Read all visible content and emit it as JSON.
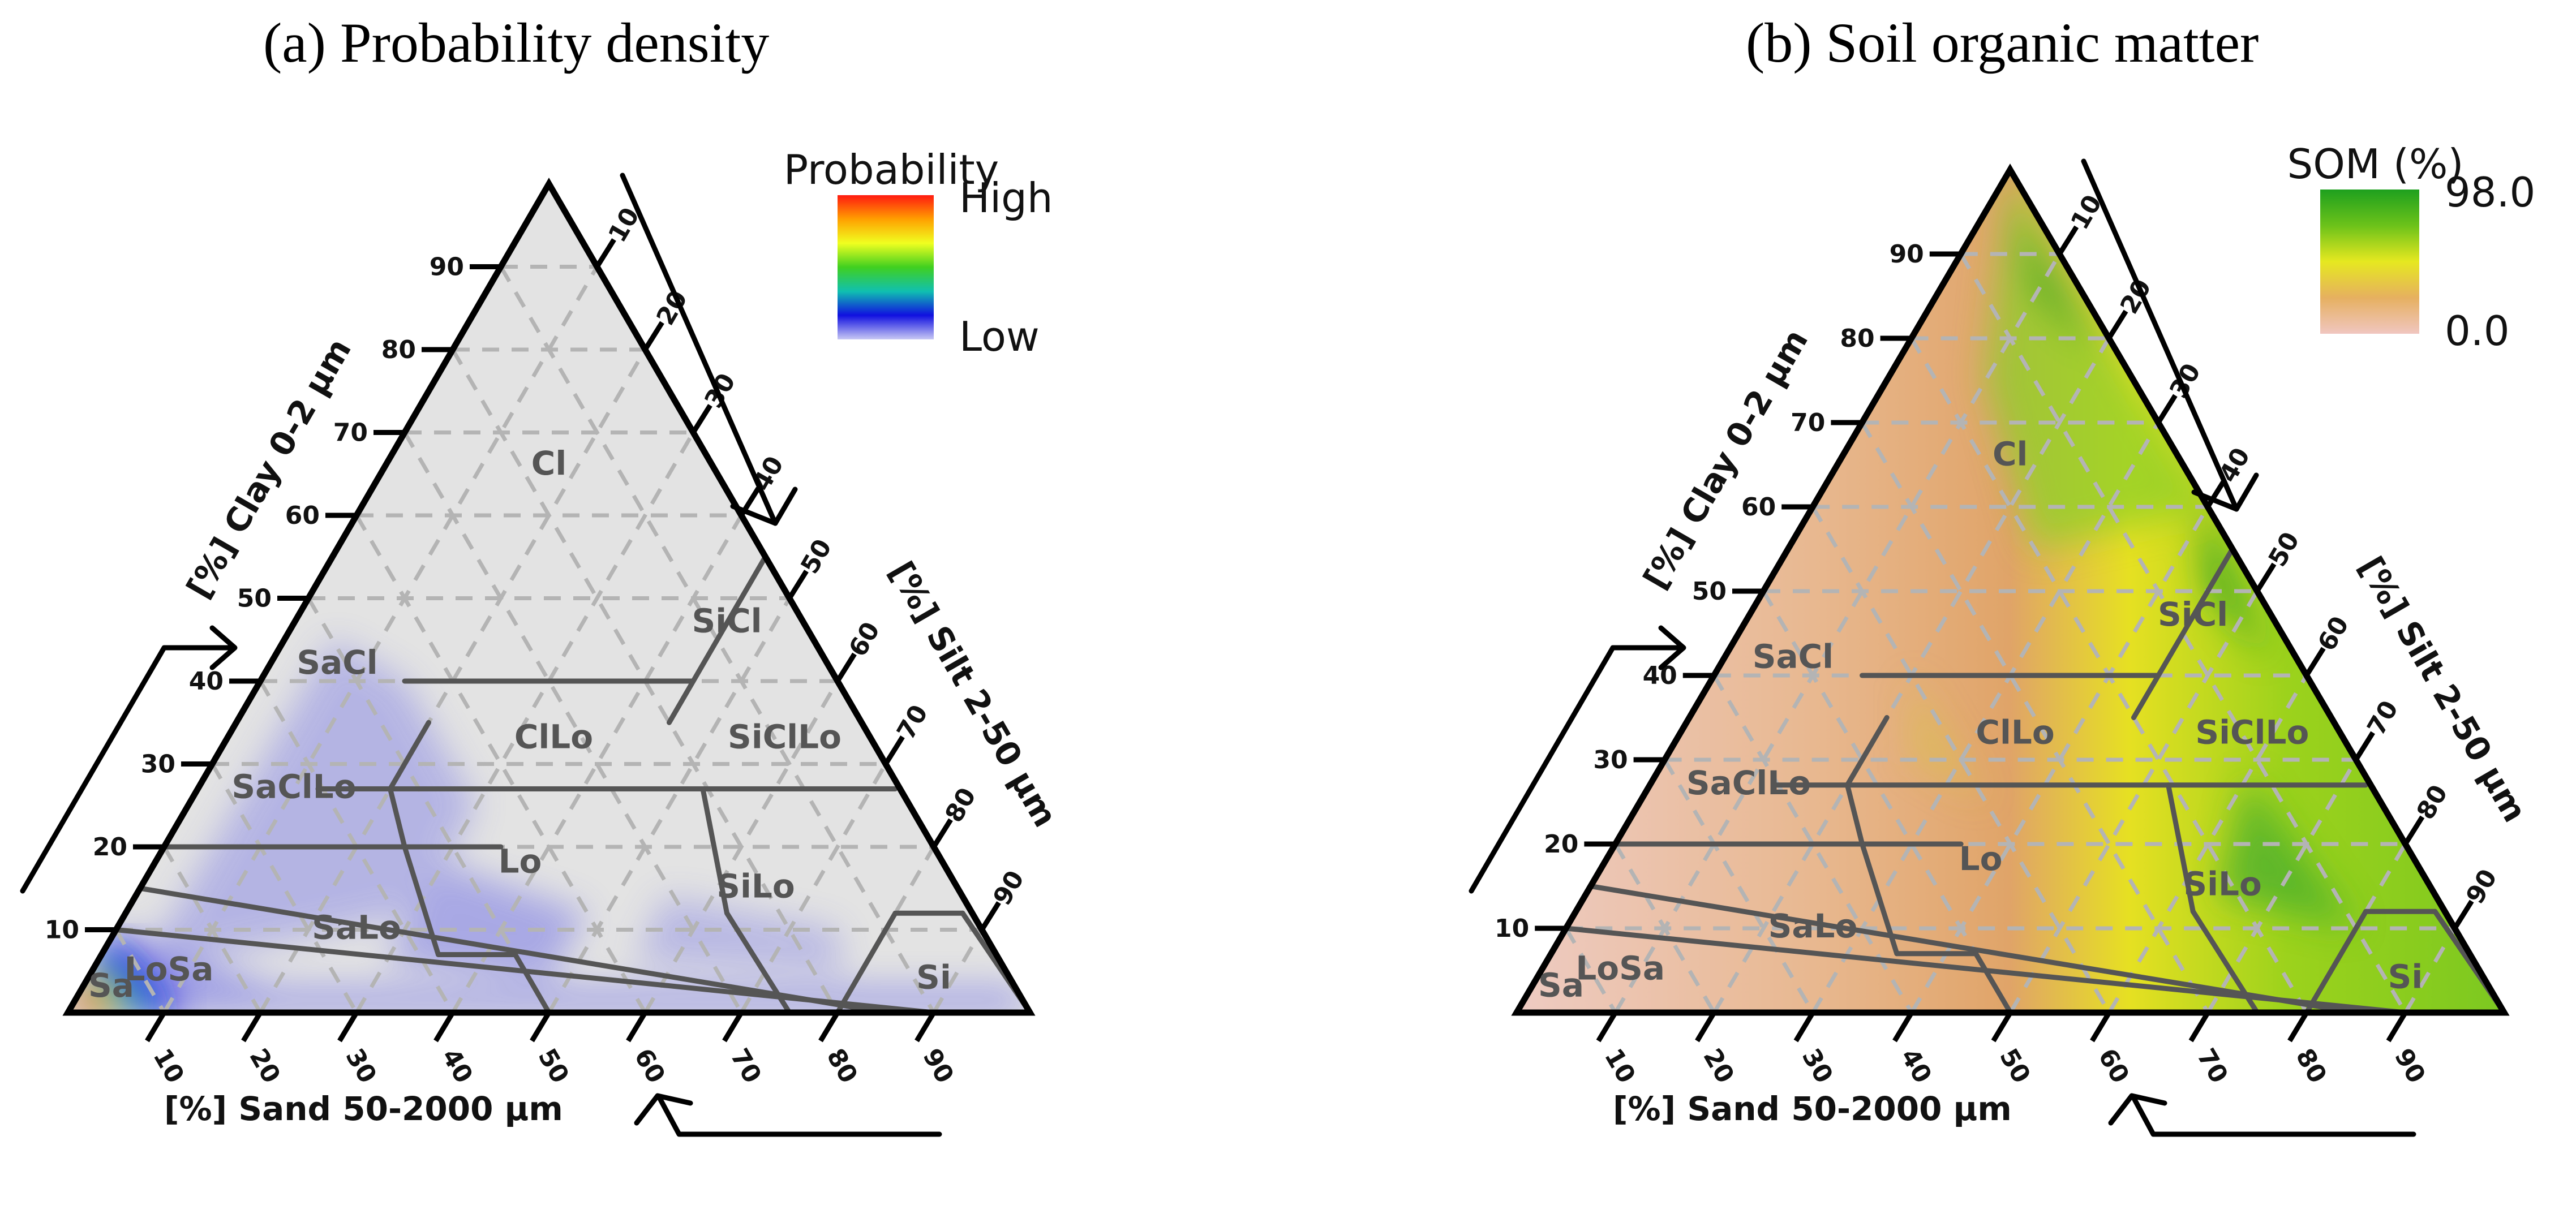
{
  "panels": [
    {
      "id": "a",
      "title": "(a) Probability density",
      "legend": {
        "title": "Probability",
        "high": "High",
        "low": "Low",
        "colors": [
          "#ff1a10",
          "#ffa000",
          "#f0ff20",
          "#40d020",
          "#10c0b0",
          "#1010e0",
          "#c8c8f4"
        ]
      },
      "axis_labels": {
        "clay": "[%] Clay 0-2 μm",
        "silt": "[%] Silt 2-50 μm",
        "sand": "[%] Sand 50-2000 μm"
      },
      "fill": "#e3e3e3"
    },
    {
      "id": "b",
      "title": "(b) Soil organic matter",
      "legend": {
        "title": "SOM (%)",
        "high": "98.0",
        "low": "0.0",
        "colors": [
          "#1ea01e",
          "#6cc21a",
          "#e6e820",
          "#e6b060",
          "#f0c6c0"
        ]
      },
      "axis_labels": {
        "clay": "[%] Clay 0-2 μm",
        "silt": "[%] Silt 2-50 μm",
        "sand": "[%] Sand 50-2000 μm"
      },
      "fill": "#dfa06a"
    }
  ],
  "ticks": {
    "clay": [
      "10",
      "20",
      "30",
      "40",
      "50",
      "60",
      "70",
      "80",
      "90"
    ],
    "silt": [
      "10",
      "20",
      "30",
      "40",
      "50",
      "60",
      "70",
      "80",
      "90"
    ],
    "sand": [
      "90",
      "80",
      "70",
      "60",
      "50",
      "40",
      "30",
      "20",
      "10"
    ]
  },
  "texture_classes": [
    "Cl",
    "SiCl",
    "SaCl",
    "ClLo",
    "SiClLo",
    "SaClLo",
    "Lo",
    "SiLo",
    "SaLo",
    "Si",
    "LoSa",
    "Sa"
  ],
  "colors": {
    "boundary": "#555555",
    "frame": "#000000",
    "grid": "#b4b4b4",
    "density": "#7a7ae6"
  }
}
